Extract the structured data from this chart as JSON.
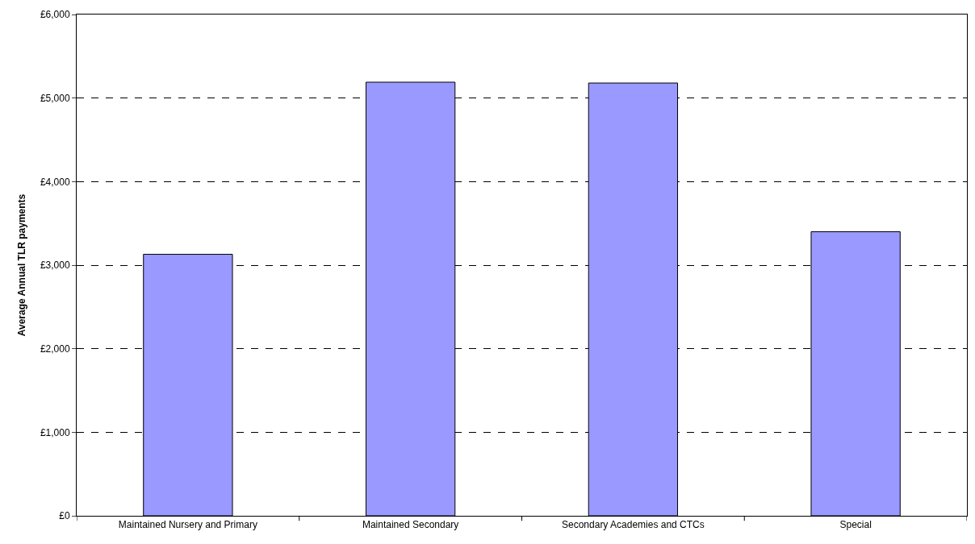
{
  "chart_data": {
    "type": "bar",
    "ylabel": "Average Annual TLR payments",
    "categories": [
      "Maintained Nursery and Primary",
      "Maintained Secondary",
      "Secondary Academies and CTCs",
      "Special"
    ],
    "values": [
      3130,
      5190,
      5180,
      3400
    ],
    "color": "#9999ff",
    "ylim": [
      0,
      6000
    ],
    "yticks": [
      {
        "value": 0,
        "label": "£0"
      },
      {
        "value": 1000,
        "label": "£1,000"
      },
      {
        "value": 2000,
        "label": "£2,000"
      },
      {
        "value": 3000,
        "label": "£3,000"
      },
      {
        "value": 4000,
        "label": "£4,000"
      },
      {
        "value": 5000,
        "label": "£5,000"
      },
      {
        "value": 6000,
        "label": "£6,000"
      }
    ],
    "grid": "y"
  }
}
